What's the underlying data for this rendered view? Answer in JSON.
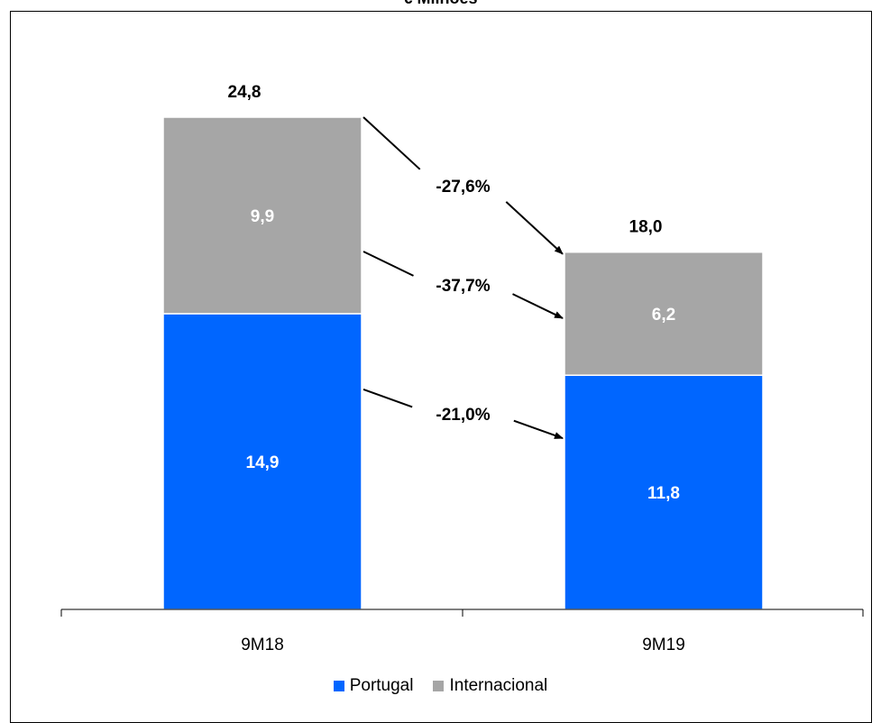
{
  "chart_data": {
    "type": "bar",
    "stacked": true,
    "title": "€ Milhões",
    "categories": [
      "9M18",
      "9M19"
    ],
    "series": [
      {
        "name": "Portugal",
        "values": [
          14.9,
          11.8
        ],
        "labels": [
          "14,9",
          "11,8"
        ],
        "color": "#0066FF"
      },
      {
        "name": "Internacional",
        "values": [
          9.9,
          6.2
        ],
        "labels": [
          "9,9",
          "6,2"
        ],
        "color": "#A6A6A6"
      }
    ],
    "totals": [
      24.8,
      18.0
    ],
    "total_labels": [
      "24,8",
      "18,0"
    ],
    "changes": [
      {
        "series": "Total",
        "label": "-27,6%"
      },
      {
        "series": "Internacional",
        "label": "-37,7%"
      },
      {
        "series": "Portugal",
        "label": "-21,0%"
      }
    ],
    "legend": "bottom",
    "grid": false
  }
}
